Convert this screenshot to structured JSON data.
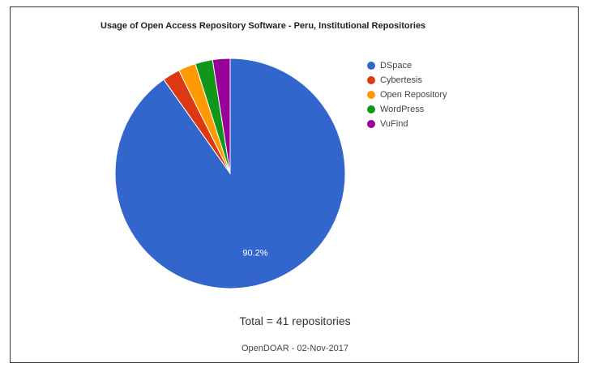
{
  "chart_data": {
    "type": "pie",
    "title": "Usage of Open Access Repository Software - Peru, Institutional Repositories",
    "slices": [
      {
        "label": "DSpace",
        "value": 90.2,
        "color": "#3366cc"
      },
      {
        "label": "Cybertesis",
        "value": 2.45,
        "color": "#dc3912"
      },
      {
        "label": "Open Repository",
        "value": 2.45,
        "color": "#ff9900"
      },
      {
        "label": "WordPress",
        "value": 2.45,
        "color": "#109618"
      },
      {
        "label": "VuFind",
        "value": 2.45,
        "color": "#990099"
      }
    ],
    "data_labels": [
      "90.2%"
    ],
    "legend_position": "right"
  },
  "footer": {
    "total": "Total = 41 repositories",
    "source": "OpenDOAR - 02-Nov-2017"
  }
}
